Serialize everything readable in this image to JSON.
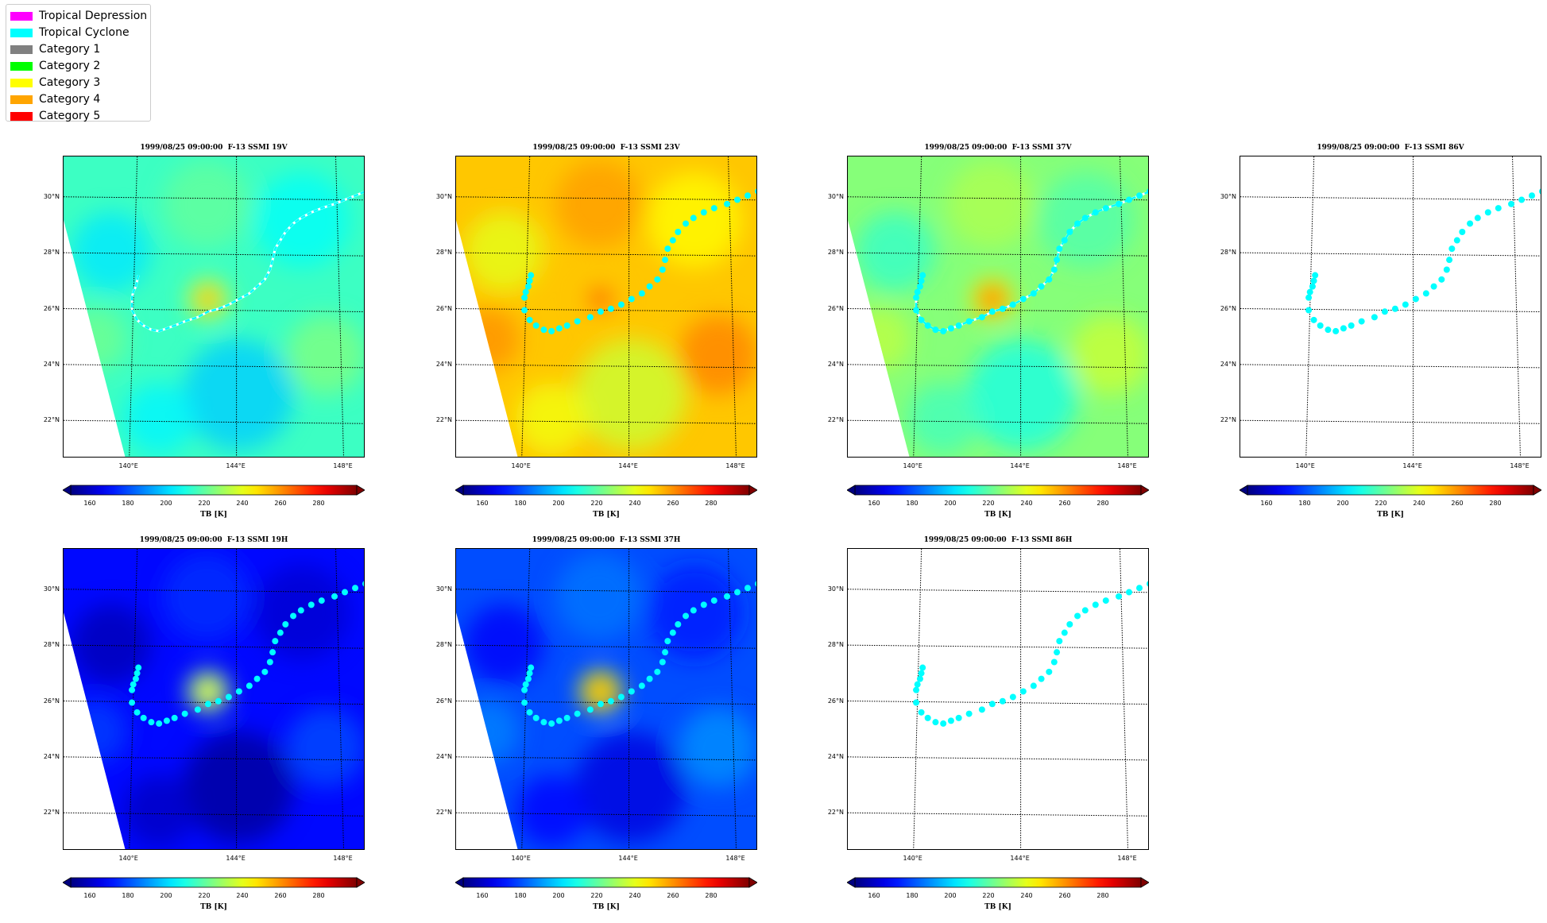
{
  "legend": [
    {
      "label": "Tropical Depression",
      "color": "#ff00ff"
    },
    {
      "label": "Tropical Cyclone",
      "color": "#00ffff"
    },
    {
      "label": "Category 1",
      "color": "#808080"
    },
    {
      "label": "Category 2",
      "color": "#00ff00"
    },
    {
      "label": "Category 3",
      "color": "#ffff00"
    },
    {
      "label": "Category 4",
      "color": "#ffa500"
    },
    {
      "label": "Category 5",
      "color": "#ff0000"
    }
  ],
  "panels": [
    {
      "title": "1999/08/25 09:00:00  F-13 SSMI 19V",
      "field": "19V",
      "mean_tb": 215,
      "eye_tb": 255,
      "swath": true,
      "track_style": "dashed"
    },
    {
      "title": "1999/08/25 09:00:00  F-13 SSMI 23V",
      "field": "23V",
      "mean_tb": 252,
      "eye_tb": 272,
      "swath": true,
      "track_style": "dots"
    },
    {
      "title": "1999/08/25 09:00:00  F-13 SSMI 37V",
      "field": "37V",
      "mean_tb": 226,
      "eye_tb": 268,
      "swath": true,
      "track_style": "dashed-dots"
    },
    {
      "title": "1999/08/25 09:00:00  F-13 SSMI 86V",
      "field": "86V",
      "mean_tb": null,
      "eye_tb": null,
      "swath": false,
      "track_style": "dots"
    },
    {
      "title": "1999/08/25 09:00:00  F-13 SSMI 19H",
      "field": "19H",
      "mean_tb": 170,
      "eye_tb": 245,
      "swath": true,
      "track_style": "dots"
    },
    {
      "title": "1999/08/25 09:00:00  F-13 SSMI 37H",
      "field": "37H",
      "mean_tb": 180,
      "eye_tb": 262,
      "swath": true,
      "track_style": "dots"
    },
    {
      "title": "1999/08/25 09:00:00  F-13 SSMI 86H",
      "field": "86H",
      "mean_tb": null,
      "eye_tb": null,
      "swath": false,
      "track_style": "dots"
    }
  ],
  "map": {
    "lat_labels": [
      "30°N",
      "28°N",
      "26°N",
      "24°N",
      "22°N"
    ],
    "lon_labels": [
      "140°E",
      "144°E",
      "148°E"
    ],
    "lat_lines": [
      30,
      28,
      26,
      24,
      22
    ],
    "lon_lines": [
      140,
      144,
      148
    ],
    "extent": {
      "lon_min": 137.3,
      "lon_max": 149.0,
      "lat_min": 20.7,
      "lat_max": 31.5
    }
  },
  "track": [
    [
      140.2,
      27.25
    ],
    [
      140.15,
      27.05
    ],
    [
      140.1,
      26.85
    ],
    [
      140.0,
      26.65
    ],
    [
      139.95,
      26.45
    ],
    [
      139.95,
      26.0
    ],
    [
      140.15,
      25.65
    ],
    [
      140.4,
      25.45
    ],
    [
      140.7,
      25.3
    ],
    [
      141.0,
      25.25
    ],
    [
      141.3,
      25.35
    ],
    [
      141.6,
      25.45
    ],
    [
      142.0,
      25.6
    ],
    [
      142.5,
      25.75
    ],
    [
      142.9,
      25.95
    ],
    [
      143.3,
      26.05
    ],
    [
      143.7,
      26.2
    ],
    [
      144.1,
      26.4
    ],
    [
      144.5,
      26.6
    ],
    [
      144.8,
      26.85
    ],
    [
      145.1,
      27.1
    ],
    [
      145.3,
      27.45
    ],
    [
      145.4,
      27.8
    ],
    [
      145.5,
      28.2
    ],
    [
      145.7,
      28.5
    ],
    [
      145.9,
      28.8
    ],
    [
      146.2,
      29.1
    ],
    [
      146.5,
      29.3
    ],
    [
      146.9,
      29.5
    ],
    [
      147.3,
      29.65
    ],
    [
      147.8,
      29.8
    ],
    [
      148.2,
      29.95
    ],
    [
      148.6,
      30.1
    ],
    [
      149.0,
      30.25
    ]
  ],
  "colorbar": {
    "ticks": [
      "160",
      "180",
      "200",
      "220",
      "240",
      "260",
      "280"
    ],
    "label": "TB [K]",
    "vmin": 150,
    "vmax": 300
  }
}
